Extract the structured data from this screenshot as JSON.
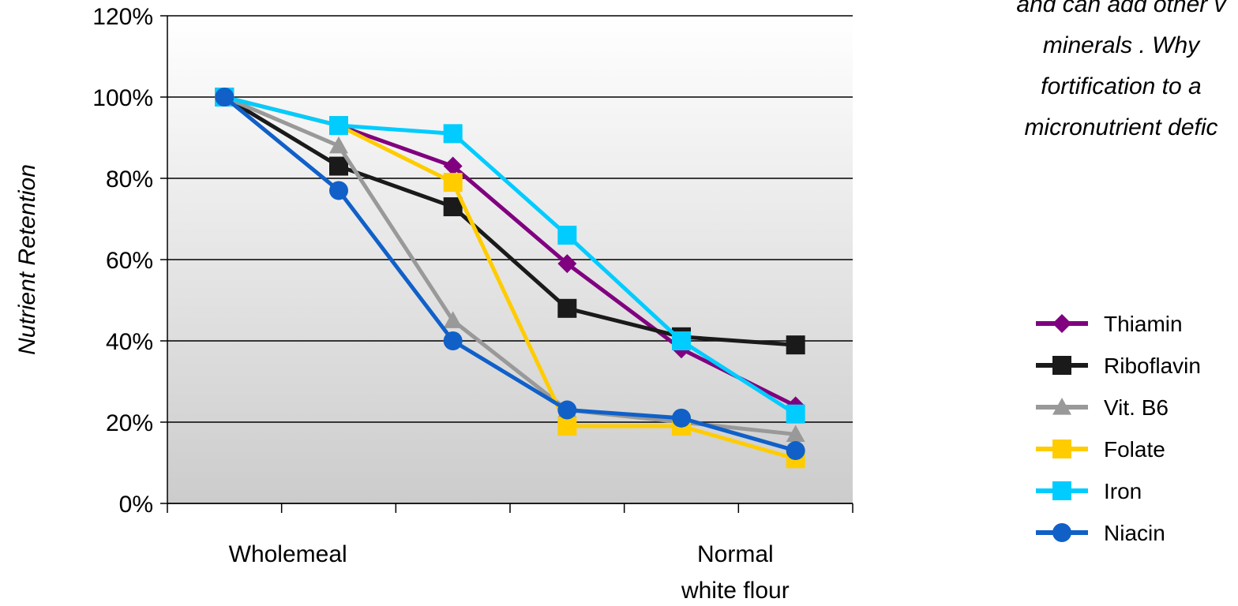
{
  "note": {
    "lines": [
      "and can add other v",
      "minerals . Why",
      "fortification to a",
      "micronutrient defic"
    ]
  },
  "chart_data": {
    "type": "line",
    "ylabel": "Nutrient Retention",
    "xlabel": "",
    "ylim": [
      0,
      120
    ],
    "y_ticks": [
      "0%",
      "20%",
      "40%",
      "60%",
      "80%",
      "100%",
      "120%"
    ],
    "category_labels": [
      {
        "position": 1,
        "text": [
          "Wholemeal"
        ]
      },
      {
        "position": 5,
        "text": [
          "Normal",
          "white flour"
        ]
      }
    ],
    "x": [
      0,
      1,
      2,
      3,
      4,
      5
    ],
    "grid": true,
    "legend_position": "right",
    "series": [
      {
        "name": "Thiamin",
        "color": "#800080",
        "marker": "diamond",
        "values": [
          100,
          93,
          83,
          59,
          38,
          24
        ]
      },
      {
        "name": "Riboflavin",
        "color": "#1a1a1a",
        "marker": "square",
        "values": [
          100,
          83,
          73,
          48,
          41,
          39
        ]
      },
      {
        "name": "Vit. B6",
        "color": "#999999",
        "marker": "triangle",
        "values": [
          100,
          88,
          45,
          23,
          20,
          17
        ]
      },
      {
        "name": "Folate",
        "color": "#FFCC00",
        "marker": "square",
        "values": [
          100,
          93,
          79,
          19,
          19,
          11
        ]
      },
      {
        "name": "Iron",
        "color": "#00CCFF",
        "marker": "square",
        "values": [
          100,
          93,
          91,
          66,
          40,
          22
        ]
      },
      {
        "name": "Niacin",
        "color": "#1060C8",
        "marker": "circle",
        "values": [
          100,
          77,
          40,
          23,
          21,
          13
        ]
      }
    ]
  }
}
